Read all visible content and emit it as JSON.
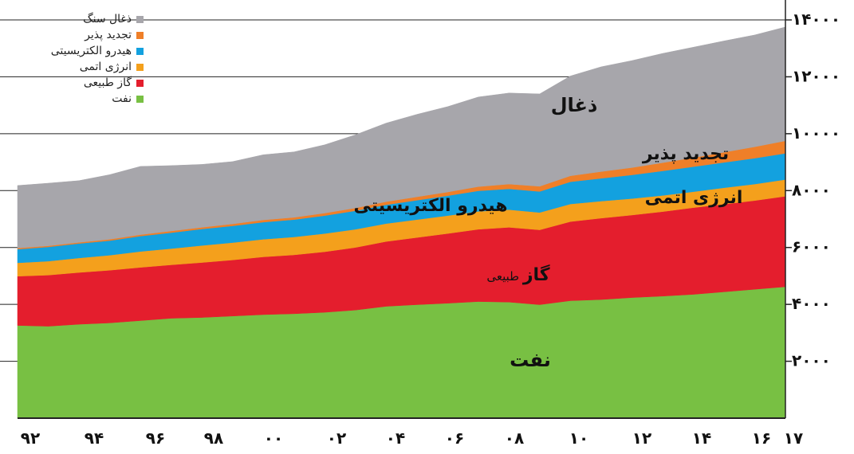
{
  "chart_data": {
    "type": "area",
    "stacked": true,
    "x": [
      "92",
      "93",
      "94",
      "95",
      "96",
      "97",
      "98",
      "99",
      "00",
      "01",
      "02",
      "03",
      "04",
      "05",
      "06",
      "07",
      "08",
      "09",
      "10",
      "11",
      "12",
      "13",
      "14",
      "15",
      "16",
      "17"
    ],
    "x_tick_labels": [
      "۹۲",
      "۹۴",
      "۹۶",
      "۹۸",
      "۰۰",
      "۰۲",
      "۰۴",
      "۰۶",
      "۰۸",
      "۱۰",
      "۱۲",
      "۱۴",
      "۱۶",
      "۱۷"
    ],
    "y_tick_labels": [
      "۲۰۰۰",
      "۴۰۰۰",
      "۶۰۰۰",
      "۸۰۰۰",
      "۱۰۰۰۰",
      "۱۲۰۰۰",
      "۱۴۰۰۰"
    ],
    "y_ticks": [
      2000,
      4000,
      6000,
      8000,
      10000,
      12000,
      14000
    ],
    "ylim": [
      0,
      14700
    ],
    "y_axis_side": "right",
    "grid": "horizontal",
    "legend": "top-left",
    "series": [
      {
        "name": "نفت",
        "color": "#78c043",
        "values": [
          3260,
          3230,
          3300,
          3350,
          3430,
          3510,
          3540,
          3590,
          3640,
          3670,
          3720,
          3800,
          3930,
          3990,
          4040,
          4100,
          4080,
          3990,
          4130,
          4170,
          4240,
          4290,
          4350,
          4440,
          4530,
          4620
        ]
      },
      {
        "name": "گاز طبیعی",
        "color": "#e41e2d",
        "values": [
          1730,
          1800,
          1820,
          1850,
          1870,
          1880,
          1930,
          1970,
          2030,
          2070,
          2130,
          2200,
          2280,
          2360,
          2450,
          2540,
          2630,
          2630,
          2780,
          2860,
          2900,
          2970,
          3050,
          3080,
          3120,
          3180
        ]
      },
      {
        "name": "انرژی اتمی",
        "color": "#f4a01c",
        "values": [
          470,
          490,
          510,
          530,
          560,
          570,
          600,
          610,
          620,
          630,
          640,
          640,
          630,
          630,
          630,
          630,
          620,
          610,
          620,
          600,
          580,
          570,
          560,
          580,
          580,
          590
        ]
      },
      {
        "name": "هیدرو الکتریسیتی",
        "color": "#13a1df",
        "values": [
          480,
          500,
          510,
          510,
          540,
          560,
          580,
          590,
          600,
          610,
          630,
          650,
          660,
          680,
          700,
          720,
          730,
          740,
          780,
          800,
          830,
          860,
          880,
          890,
          910,
          920
        ]
      },
      {
        "name": "تجدید پذیر",
        "color": "#ef7f28",
        "values": [
          40,
          40,
          40,
          50,
          50,
          60,
          60,
          70,
          80,
          80,
          90,
          100,
          110,
          120,
          130,
          150,
          170,
          180,
          210,
          240,
          260,
          290,
          320,
          360,
          400,
          440
        ]
      },
      {
        "name": "ذغال سنگ",
        "color": "#a7a6ab",
        "values": [
          2200,
          2200,
          2170,
          2270,
          2400,
          2300,
          2210,
          2190,
          2290,
          2300,
          2400,
          2570,
          2760,
          2900,
          3000,
          3150,
          3200,
          3250,
          3510,
          3680,
          3760,
          3840,
          3880,
          3910,
          3930,
          4000
        ]
      }
    ],
    "area_labels": [
      {
        "text": "ذغال",
        "series": 5,
        "size": 24
      },
      {
        "text": "تجدید پذیر",
        "series": 4,
        "size": 22
      },
      {
        "text": "انرژی اتمی",
        "series": 2,
        "size": 22
      },
      {
        "text": "هیدرو الکتریسیتی",
        "series": 3,
        "size": 22
      },
      {
        "text": "گاز",
        "suffix": "طبیعی",
        "series": 1,
        "size": 22
      },
      {
        "text": "نفت",
        "series": 0,
        "size": 24
      }
    ],
    "legend_items": [
      {
        "label": "ذغال سنگ",
        "color": "#a7a6ab"
      },
      {
        "label": "تجدید پذیر",
        "color": "#ef7f28"
      },
      {
        "label": "هیدرو الکتریسیتی",
        "color": "#13a1df"
      },
      {
        "label": "انرژی اتمی",
        "color": "#f4a01c"
      },
      {
        "label": "گاز طبیعی",
        "color": "#e41e2d"
      },
      {
        "label": "نفت",
        "color": "#78c043"
      }
    ]
  }
}
